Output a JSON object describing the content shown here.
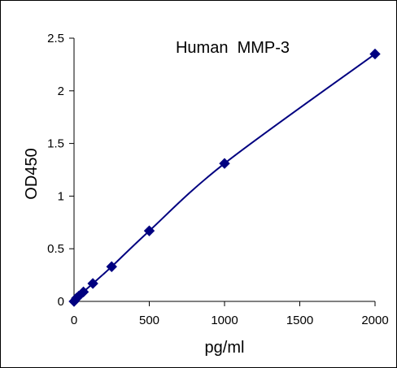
{
  "chart_data": {
    "type": "line",
    "title": "Human  MMP-3",
    "xlabel": "pg/ml",
    "ylabel": "OD450",
    "xlim": [
      0,
      2000
    ],
    "ylim": [
      0,
      2.5
    ],
    "x_ticks": [
      "0",
      "500",
      "1000",
      "1500",
      "2000"
    ],
    "y_ticks": [
      "0",
      "0.5",
      "1",
      "1.5",
      "2",
      "2.5"
    ],
    "grid": false,
    "legend": "none",
    "series": [
      {
        "x": [
          0,
          15.6,
          31.25,
          62.5,
          125,
          250,
          500,
          1000,
          2000
        ],
        "y": [
          0.0,
          0.03,
          0.05,
          0.09,
          0.17,
          0.33,
          0.67,
          1.31,
          2.35
        ],
        "color": "#000080",
        "marker": "diamond"
      }
    ]
  }
}
